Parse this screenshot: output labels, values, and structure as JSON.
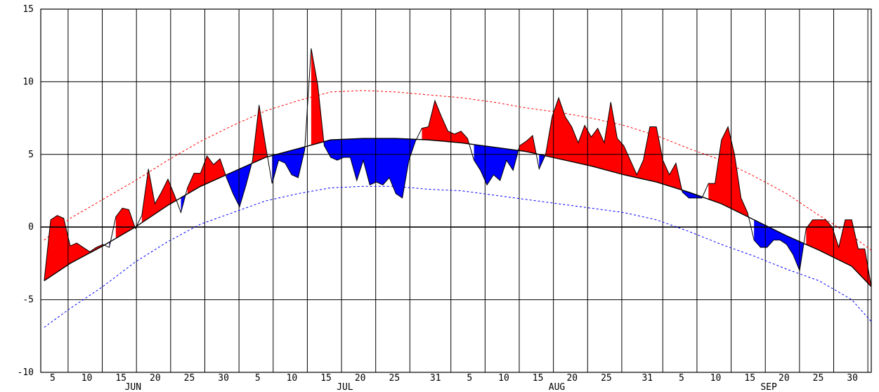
{
  "chart_data": {
    "type": "area",
    "title": "",
    "xlabel": "",
    "ylabel": "",
    "ylim": [
      -10,
      15
    ],
    "x_range": [
      "Jun 1",
      "Sep 30"
    ],
    "grid": true,
    "y_ticks": [
      "15",
      "10",
      "5",
      "0",
      "-5",
      "-10"
    ],
    "x_ticks": [
      "5",
      "10",
      "15",
      "20",
      "25",
      "30",
      "5",
      "10",
      "15",
      "20",
      "25",
      "31",
      "5",
      "10",
      "15",
      "20",
      "25",
      "31",
      "5",
      "10",
      "15",
      "20",
      "25",
      "30"
    ],
    "month_labels": [
      "JUN",
      "JUL",
      "AUG",
      "SEP"
    ],
    "colors": {
      "above_normal": "#ff0000",
      "below_normal": "#0000ff",
      "max_envelope": "#ff0000",
      "min_envelope": "#0000ff",
      "grid": "#000000"
    },
    "series": [
      {
        "role": "observed",
        "points": [
          [
            1,
            -3.7
          ],
          [
            2,
            0.5
          ],
          [
            3,
            0.8
          ],
          [
            4,
            0.6
          ],
          [
            5,
            -1.3
          ],
          [
            6,
            -1.1
          ],
          [
            7,
            -1.4
          ],
          [
            8,
            -1.7
          ],
          [
            9,
            -1.4
          ],
          [
            10,
            -1.2
          ],
          [
            11,
            -1.4
          ],
          [
            12,
            0.7
          ],
          [
            13,
            1.3
          ],
          [
            14,
            1.2
          ],
          [
            15,
            -0.1
          ],
          [
            16,
            0.8
          ],
          [
            17,
            4.0
          ],
          [
            18,
            1.6
          ],
          [
            19,
            2.4
          ],
          [
            20,
            3.3
          ],
          [
            21,
            2.2
          ],
          [
            22,
            1.0
          ],
          [
            23,
            2.7
          ],
          [
            24,
            3.7
          ],
          [
            25,
            3.7
          ],
          [
            26,
            4.9
          ],
          [
            27,
            4.3
          ],
          [
            28,
            4.7
          ],
          [
            29,
            3.4
          ],
          [
            30,
            2.3
          ],
          [
            31,
            1.4
          ],
          [
            32,
            2.9
          ],
          [
            33,
            4.6
          ],
          [
            34,
            8.4
          ],
          [
            35,
            5.6
          ],
          [
            36,
            3.0
          ],
          [
            37,
            4.6
          ],
          [
            38,
            4.4
          ],
          [
            39,
            3.6
          ],
          [
            40,
            3.4
          ],
          [
            41,
            5.3
          ],
          [
            42,
            12.3
          ],
          [
            43,
            9.8
          ],
          [
            44,
            5.6
          ],
          [
            45,
            4.8
          ],
          [
            46,
            4.6
          ],
          [
            47,
            4.8
          ],
          [
            48,
            4.8
          ],
          [
            49,
            3.2
          ],
          [
            50,
            4.6
          ],
          [
            51,
            2.9
          ],
          [
            52,
            3.1
          ],
          [
            53,
            2.9
          ],
          [
            54,
            3.4
          ],
          [
            55,
            2.3
          ],
          [
            56,
            2.0
          ],
          [
            57,
            4.6
          ],
          [
            58,
            5.9
          ],
          [
            59,
            6.8
          ],
          [
            60,
            6.9
          ],
          [
            61,
            8.7
          ],
          [
            62,
            7.6
          ],
          [
            63,
            6.6
          ],
          [
            64,
            6.4
          ],
          [
            65,
            6.6
          ],
          [
            66,
            6.1
          ],
          [
            67,
            4.6
          ],
          [
            68,
            3.9
          ],
          [
            69,
            2.9
          ],
          [
            70,
            3.6
          ],
          [
            71,
            3.2
          ],
          [
            72,
            4.6
          ],
          [
            73,
            3.9
          ],
          [
            74,
            5.6
          ],
          [
            75,
            5.9
          ],
          [
            76,
            6.3
          ],
          [
            77,
            4.0
          ],
          [
            78,
            5.0
          ],
          [
            79,
            7.6
          ],
          [
            80,
            8.9
          ],
          [
            81,
            7.6
          ],
          [
            82,
            6.9
          ],
          [
            83,
            5.8
          ],
          [
            84,
            7.0
          ],
          [
            85,
            6.2
          ],
          [
            86,
            6.8
          ],
          [
            87,
            5.8
          ],
          [
            88,
            8.6
          ],
          [
            89,
            6.1
          ],
          [
            90,
            5.6
          ],
          [
            91,
            4.6
          ],
          [
            92,
            3.6
          ],
          [
            93,
            4.6
          ],
          [
            94,
            6.9
          ],
          [
            95,
            6.9
          ],
          [
            96,
            4.6
          ],
          [
            97,
            3.6
          ],
          [
            98,
            4.4
          ],
          [
            99,
            2.4
          ],
          [
            100,
            2.0
          ],
          [
            101,
            2.0
          ],
          [
            102,
            2.0
          ],
          [
            103,
            3.0
          ],
          [
            104,
            3.0
          ],
          [
            105,
            6.0
          ],
          [
            106,
            6.9
          ],
          [
            107,
            5.0
          ],
          [
            108,
            2.0
          ],
          [
            109,
            1.0
          ],
          [
            110,
            -0.9
          ],
          [
            111,
            -1.4
          ],
          [
            112,
            -1.4
          ],
          [
            113,
            -0.9
          ],
          [
            114,
            -0.9
          ],
          [
            115,
            -1.2
          ],
          [
            116,
            -1.9
          ],
          [
            117,
            -3.0
          ],
          [
            118,
            -0.1
          ],
          [
            119,
            0.5
          ],
          [
            120,
            0.5
          ],
          [
            121,
            0.5
          ],
          [
            122,
            0.0
          ],
          [
            123,
            -1.4
          ],
          [
            124,
            0.5
          ],
          [
            125,
            0.5
          ],
          [
            126,
            -1.5
          ],
          [
            127,
            -1.5
          ],
          [
            128,
            -4.1
          ]
        ]
      },
      {
        "role": "normal",
        "points": [
          [
            1,
            -3.7
          ],
          [
            5,
            -2.5
          ],
          [
            10,
            -1.3
          ],
          [
            15,
            0.0
          ],
          [
            20,
            1.5
          ],
          [
            25,
            2.8
          ],
          [
            30,
            3.8
          ],
          [
            35,
            4.8
          ],
          [
            40,
            5.4
          ],
          [
            45,
            6.0
          ],
          [
            50,
            6.1
          ],
          [
            55,
            6.1
          ],
          [
            60,
            6.0
          ],
          [
            65,
            5.8
          ],
          [
            70,
            5.5
          ],
          [
            75,
            5.2
          ],
          [
            80,
            4.7
          ],
          [
            85,
            4.2
          ],
          [
            90,
            3.6
          ],
          [
            95,
            3.1
          ],
          [
            100,
            2.4
          ],
          [
            105,
            1.6
          ],
          [
            110,
            0.5
          ],
          [
            115,
            -0.6
          ],
          [
            120,
            -1.6
          ],
          [
            125,
            -2.7
          ],
          [
            128,
            -4.1
          ]
        ]
      },
      {
        "role": "max_envelope",
        "points": [
          [
            1,
            -0.9
          ],
          [
            5,
            0.6
          ],
          [
            10,
            1.9
          ],
          [
            15,
            3.2
          ],
          [
            20,
            4.6
          ],
          [
            25,
            5.9
          ],
          [
            30,
            7.0
          ],
          [
            35,
            8.0
          ],
          [
            40,
            8.7
          ],
          [
            45,
            9.3
          ],
          [
            50,
            9.4
          ],
          [
            55,
            9.3
          ],
          [
            60,
            9.1
          ],
          [
            65,
            8.9
          ],
          [
            70,
            8.6
          ],
          [
            75,
            8.2
          ],
          [
            80,
            7.9
          ],
          [
            85,
            7.5
          ],
          [
            90,
            7.0
          ],
          [
            95,
            6.3
          ],
          [
            100,
            5.4
          ],
          [
            105,
            4.6
          ],
          [
            110,
            3.5
          ],
          [
            115,
            2.3
          ],
          [
            120,
            0.8
          ],
          [
            125,
            -0.6
          ],
          [
            128,
            -1.6
          ]
        ]
      },
      {
        "role": "min_envelope",
        "points": [
          [
            1,
            -6.9
          ],
          [
            5,
            -5.6
          ],
          [
            10,
            -4.1
          ],
          [
            15,
            -2.4
          ],
          [
            20,
            -1.0
          ],
          [
            25,
            0.2
          ],
          [
            30,
            1.0
          ],
          [
            35,
            1.8
          ],
          [
            40,
            2.3
          ],
          [
            45,
            2.7
          ],
          [
            50,
            2.8
          ],
          [
            55,
            2.8
          ],
          [
            60,
            2.6
          ],
          [
            65,
            2.5
          ],
          [
            70,
            2.2
          ],
          [
            75,
            1.9
          ],
          [
            80,
            1.6
          ],
          [
            85,
            1.3
          ],
          [
            90,
            1.0
          ],
          [
            95,
            0.5
          ],
          [
            100,
            -0.3
          ],
          [
            105,
            -1.2
          ],
          [
            110,
            -2.0
          ],
          [
            115,
            -2.9
          ],
          [
            120,
            -3.7
          ],
          [
            125,
            -5.0
          ],
          [
            128,
            -6.5
          ]
        ]
      }
    ]
  }
}
